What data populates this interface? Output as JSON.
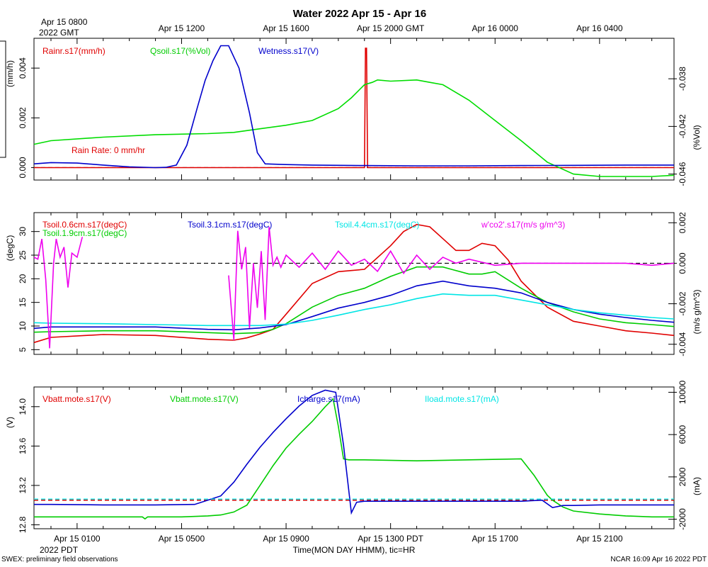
{
  "title": "Water 2022 Apr 15 - Apr 16",
  "top_axis": {
    "start_label_line1": "Apr 15 0800",
    "start_label_line2": "2022 GMT",
    "ticks": [
      "Apr 15 1200",
      "Apr 15 1600",
      "Apr 15 2000 GMT",
      "Apr 16 0000",
      "Apr 16 0400"
    ]
  },
  "bottom_axis": {
    "ticks": [
      "Apr 15 0100",
      "Apr 15 0500",
      "Apr 15 0900",
      "Apr 15 1300 PDT",
      "Apr 15 1700",
      "Apr 15 2100"
    ],
    "year_label": "2022 PDT",
    "xlabel": "Time(MON DAY HHMM), tic=HR"
  },
  "footer": {
    "left": "SWEX: preliminary field observations",
    "right": "NCAR 16:09 Apr 16 2022 PDT"
  },
  "chart_data": [
    {
      "type": "line",
      "panel": "water",
      "x_unit": "hours since Apr 15 0000 PDT",
      "xlim": [
        -0.65,
        23.85
      ],
      "ylabel_left": "(mm/h)",
      "ylabel_right": "(%Vol)",
      "ylim_left": [
        -0.0005,
        0.0052
      ],
      "ylim_right": [
        -0.0465,
        -0.0346
      ],
      "left_ticks": [
        "0.000",
        "0.002",
        "0.004"
      ],
      "right_ticks": [
        "-0.046",
        "-0.042",
        "-0.038"
      ],
      "annotation": "Rain Rate: 0 mm/h",
      "series": [
        {
          "name": "Rainr.s17(mm/h)",
          "color": "#e00000",
          "axis": "left",
          "x": [
            -0.65,
            12.0,
            12.04,
            12.08,
            12.12,
            12.16,
            23.85
          ],
          "y": [
            0,
            0,
            0.0048,
            0.0048,
            0,
            0,
            0
          ]
        },
        {
          "name": "Qsoil.s17(%Vol)",
          "color": "#00dd00",
          "axis": "right",
          "x": [
            -0.65,
            0,
            2,
            4,
            6,
            7,
            8,
            9,
            10,
            11,
            11.5,
            12,
            12.3,
            12.5,
            13,
            14,
            14.5,
            15,
            16,
            17,
            18,
            19,
            20,
            21,
            22,
            23,
            23.85
          ],
          "y": [
            -0.0435,
            -0.0432,
            -0.0429,
            -0.0427,
            -0.0426,
            -0.0425,
            -0.0422,
            -0.0419,
            -0.0415,
            -0.0405,
            -0.0396,
            -0.0385,
            -0.0383,
            -0.0381,
            -0.0382,
            -0.0381,
            -0.0383,
            -0.0385,
            -0.0398,
            -0.0415,
            -0.0432,
            -0.045,
            -0.046,
            -0.0462,
            -0.0462,
            -0.0462,
            -0.0461
          ]
        },
        {
          "name": "Wetness.s17(V)",
          "color": "#0000cc",
          "axis": "left",
          "x": [
            -0.65,
            0,
            1,
            2,
            3,
            4,
            4.4,
            4.8,
            5.2,
            5.6,
            5.9,
            6.2,
            6.5,
            6.8,
            7.2,
            7.6,
            7.9,
            8.2,
            9,
            10,
            12,
            14,
            16,
            18,
            20,
            22,
            23.85
          ],
          "y": [
            0.00015,
            0.0002,
            0.00018,
            0.0001,
            3e-05,
            0.0,
            1e-05,
            0.0001,
            0.0009,
            0.0024,
            0.0035,
            0.0043,
            0.0049,
            0.0049,
            0.004,
            0.0022,
            0.0006,
            0.00015,
            0.00012,
            0.0001,
            8e-05,
            7e-05,
            7e-05,
            8e-05,
            9e-05,
            0.0001,
            0.0001
          ]
        }
      ]
    },
    {
      "type": "line",
      "panel": "soil temperature",
      "x_unit": "hours since Apr 15 0000 PDT",
      "xlim": [
        -0.65,
        23.85
      ],
      "ylabel_left": "(degC)",
      "ylabel_right": "(m/s g/m^3)",
      "ylim_left": [
        4,
        34
      ],
      "ylim_right": [
        -0.0045,
        0.0025
      ],
      "left_ticks": [
        "5",
        "10",
        "15",
        "20",
        "25",
        "30"
      ],
      "right_ticks": [
        "-0.004",
        "-0.002",
        "0.000",
        "0.002"
      ],
      "series": [
        {
          "name": "Tsoil.0.6cm.s17(degC)",
          "color": "#e00000",
          "axis": "left",
          "x": [
            -0.65,
            0,
            2,
            4,
            6,
            7,
            7.5,
            8,
            8.5,
            9,
            10,
            11,
            12,
            13,
            13.5,
            14,
            14.5,
            15,
            15.5,
            16,
            16.5,
            17,
            17.5,
            18,
            19,
            20,
            21,
            22,
            23,
            23.85
          ],
          "y": [
            6.5,
            7.6,
            8.2,
            8.0,
            7.2,
            7.0,
            7.5,
            8.3,
            9.3,
            12.5,
            19.0,
            21.5,
            22.0,
            27.0,
            30.0,
            31.5,
            31.0,
            28.5,
            26.0,
            26.0,
            27.5,
            27.0,
            24.0,
            19.5,
            14.0,
            11.0,
            10.0,
            9.0,
            8.5,
            8.0
          ]
        },
        {
          "name": "Tsoil.1.9cm.s17(degC)",
          "color": "#00cc00",
          "axis": "left",
          "x": [
            -0.65,
            0,
            2,
            4,
            6,
            7,
            8,
            8.5,
            9,
            10,
            11,
            12,
            13,
            14,
            15,
            16,
            16.5,
            17,
            18,
            19,
            20,
            21,
            22,
            23,
            23.85
          ],
          "y": [
            8.7,
            8.8,
            9.0,
            9.0,
            8.6,
            8.4,
            8.6,
            9.3,
            10.5,
            14.0,
            16.5,
            18.0,
            20.5,
            22.5,
            22.5,
            21.0,
            21.0,
            21.5,
            18.0,
            15.0,
            13.0,
            11.5,
            10.7,
            10.3,
            9.9
          ]
        },
        {
          "name": "Tsoil.3.1cm.s17(degC)",
          "color": "#0000cc",
          "axis": "left",
          "x": [
            -0.65,
            0,
            2,
            4,
            6,
            7,
            8,
            9,
            10,
            11,
            12,
            13,
            14,
            15,
            16,
            17,
            18,
            19,
            20,
            21,
            22,
            23,
            23.85
          ],
          "y": [
            9.5,
            9.8,
            9.8,
            9.8,
            9.3,
            9.2,
            9.6,
            10.3,
            12.0,
            13.8,
            15.0,
            16.5,
            18.5,
            19.5,
            18.5,
            18.0,
            17.0,
            15.0,
            13.5,
            12.5,
            11.8,
            11.2,
            10.8
          ]
        },
        {
          "name": "Tsoil.4.4cm.s17(degC)",
          "color": "#00e5e5",
          "axis": "left",
          "x": [
            -0.65,
            0,
            2,
            4,
            6,
            8,
            9,
            10,
            11,
            12,
            13,
            14,
            15,
            16,
            17,
            18,
            19,
            20,
            21,
            22,
            23,
            23.85
          ],
          "y": [
            10.7,
            10.6,
            10.5,
            10.3,
            10.1,
            10.1,
            10.4,
            11.2,
            12.3,
            13.5,
            14.5,
            15.8,
            16.8,
            16.5,
            16.5,
            15.5,
            14.5,
            13.5,
            12.8,
            12.3,
            11.8,
            11.5
          ]
        },
        {
          "name": "w'co2'.s17(m/s g/m^3)",
          "color": "#ee00ee",
          "axis": "right",
          "x": [
            -0.65,
            -0.5,
            -0.35,
            -0.2,
            -0.05,
            0.1,
            0.2,
            0.35,
            0.5,
            0.65,
            0.8,
            1.0,
            1.2,
            null,
            6.8,
            7.0,
            7.15,
            7.3,
            7.45,
            7.6,
            7.75,
            7.9,
            8.05,
            8.2,
            8.35,
            8.5,
            8.65,
            8.8,
            9.0,
            9.5,
            10.0,
            10.5,
            11.0,
            11.5,
            12.0,
            12.5,
            13.0,
            13.5,
            14.0,
            14.5,
            15.0,
            15.5,
            16.0,
            17.0,
            18.0,
            19.0,
            20.0,
            21.0,
            22.0,
            23.0,
            23.85
          ],
          "y": [
            0.0003,
            0.0002,
            0.0012,
            -0.0008,
            -0.0042,
            0.0,
            0.0012,
            0.0003,
            0.0008,
            -0.0012,
            0.0005,
            0.0003,
            0.0013,
            null,
            -0.0006,
            -0.0038,
            0.0016,
            -0.0003,
            0.0008,
            -0.0032,
            0.0,
            -0.0022,
            0.0006,
            -0.0028,
            0.0018,
            -0.0001,
            0.0003,
            -0.0002,
            0.0004,
            -0.0002,
            0.0005,
            -0.0003,
            0.0006,
            -0.0001,
            0.0002,
            -0.0004,
            0.0006,
            -0.0005,
            0.0004,
            -0.0003,
            0.0003,
            0.0,
            0.0002,
            -0.0001,
            0.0,
            0.0,
            0.0,
            0.0,
            0.0,
            -0.0001,
            0.0
          ]
        }
      ]
    },
    {
      "type": "line",
      "panel": "battery",
      "x_unit": "hours since Apr 15 0000 PDT",
      "xlim": [
        -0.65,
        23.85
      ],
      "ylabel_left": "(V)",
      "ylabel_right": "(mA)",
      "ylim_left": [
        12.76,
        14.2
      ],
      "ylim_right": [
        -2900,
        10500
      ],
      "left_ticks": [
        "12.8",
        "13.2",
        "13.6",
        "14.0"
      ],
      "right_ticks": [
        "-2000",
        "2000",
        "6000",
        "10000"
      ],
      "series": [
        {
          "name": "Vbatt.mote.s17(V)",
          "color": "#e00000",
          "axis": "left",
          "x": [
            -0.65,
            23.85
          ],
          "y": [
            13.05,
            13.05
          ]
        },
        {
          "name": "Vbatt.mote.s17(V)",
          "color": "#00cc00",
          "axis": "left",
          "x": [
            -0.65,
            2,
            3.5,
            3.6,
            3.7,
            5,
            6,
            6.5,
            7,
            7.5,
            8,
            8.5,
            9,
            9.5,
            10,
            10.5,
            10.8,
            11,
            11.2,
            11.4,
            12,
            14,
            16,
            18,
            18.5,
            19,
            19.2,
            19.6,
            20,
            21,
            22,
            23,
            23.85
          ],
          "y": [
            12.88,
            12.88,
            12.88,
            12.86,
            12.88,
            12.88,
            12.89,
            12.9,
            12.93,
            13.0,
            13.2,
            13.4,
            13.58,
            13.72,
            13.85,
            14.0,
            14.08,
            13.8,
            13.47,
            13.46,
            13.46,
            13.45,
            13.46,
            13.47,
            13.3,
            13.1,
            13.05,
            12.98,
            12.94,
            12.91,
            12.89,
            12.88,
            12.88
          ]
        },
        {
          "name": "Icharge.s17(mA)",
          "color": "#0000cc",
          "axis": "right",
          "x": [
            -0.65,
            0,
            2,
            4,
            5.5,
            6,
            6.5,
            7,
            7.5,
            8,
            8.5,
            9,
            9.5,
            10,
            10.5,
            10.9,
            11.2,
            11.5,
            11.7,
            12,
            14,
            16,
            18,
            18.8,
            19.2,
            19.6,
            20,
            21,
            22,
            23,
            23.85
          ],
          "y": [
            -600,
            -600,
            -650,
            -650,
            -600,
            -200,
            200,
            1500,
            3200,
            4800,
            6200,
            7500,
            8700,
            9700,
            10200,
            10000,
            5000,
            -1400,
            -400,
            -300,
            -300,
            -300,
            -300,
            -200,
            -900,
            -700,
            -700,
            -650,
            -650,
            -650,
            -650
          ]
        },
        {
          "name": "Iload.mote.s17(mA)",
          "color": "#00e5e5",
          "axis": "right",
          "x": [
            -0.65,
            23.85
          ],
          "y": [
            -100,
            -100
          ]
        }
      ]
    }
  ],
  "legends": {
    "p1": [
      "Rainr.s17(mm/h)",
      "Qsoil.s17(%Vol)",
      "Wetness.s17(V)"
    ],
    "p1_annotation": "Rain Rate: 0 mm/hr",
    "p2": [
      "Tsoil.0.6cm.s17(degC)",
      "Tsoil.1.9cm.s17(degC)",
      "Tsoil.3.1cm.s17(degC)",
      "Tsoil.4.4cm.s17(degC)",
      "w'co2'.s17(m/s g/m^3)"
    ],
    "p3": [
      "Vbatt.mote.s17(V)",
      "Vbatt.mote.s17(V)",
      "Icharge.s17(mA)",
      "Iload.mote.s17(mA)"
    ]
  },
  "colors": {
    "red": "#e00000",
    "green": "#00cc00",
    "blue": "#0000cc",
    "cyan": "#00e5e5",
    "magenta": "#ee00ee"
  }
}
